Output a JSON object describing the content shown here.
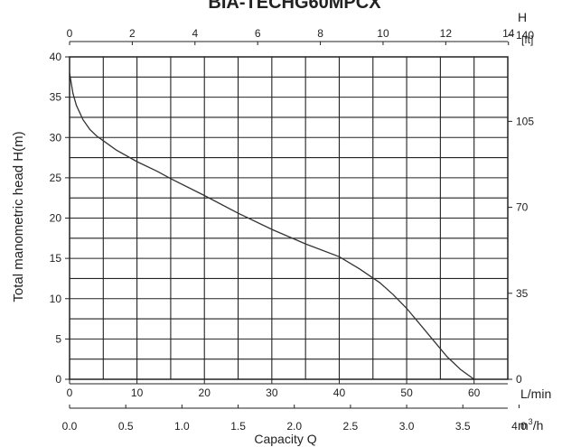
{
  "chart_data": {
    "type": "line",
    "title": "BIA-TECHG60MPCX",
    "xlabel": "Capacity Q",
    "ylabel": "Total manometric head H(m)",
    "x_unit": "L/min",
    "x_m3h_unit_base": "m",
    "x_m3h_unit_sup": "3",
    "x_m3h_unit_tail": "/h",
    "y_right_label": "H",
    "y_right_unit": "[ft]",
    "xlim": [
      0,
      65
    ],
    "ylim": [
      0,
      40
    ],
    "x_ticks_lmin": [
      "0",
      "10",
      "20",
      "30",
      "40",
      "50",
      "60"
    ],
    "x_ticks_m3h": [
      "0.0",
      "0.5",
      "1.0",
      "1.5",
      "2.0",
      "2.5",
      "3.0",
      "3.5",
      "4.0"
    ],
    "x_ticks_top": [
      "0",
      "2",
      "4",
      "6",
      "8",
      "10",
      "12",
      "14"
    ],
    "y_ticks_left": [
      "0",
      "5",
      "10",
      "15",
      "20",
      "25",
      "30",
      "35",
      "40"
    ],
    "y_ticks_right": [
      "0",
      "35",
      "70",
      "105",
      "140"
    ],
    "grid": true,
    "series": [
      {
        "x": [
          0,
          0.5,
          1,
          2,
          3,
          4,
          5,
          7,
          10,
          13,
          15,
          20,
          25,
          30,
          35,
          40,
          43,
          46,
          48,
          50,
          52,
          54,
          56,
          58,
          60
        ],
        "y": [
          38,
          35.5,
          34,
          32.2,
          31,
          30.2,
          29.6,
          28.4,
          27,
          25.8,
          24.9,
          22.8,
          20.6,
          18.6,
          16.8,
          15.2,
          13.7,
          12,
          10.5,
          8.8,
          6.8,
          4.8,
          2.8,
          1.2,
          0
        ]
      }
    ]
  }
}
